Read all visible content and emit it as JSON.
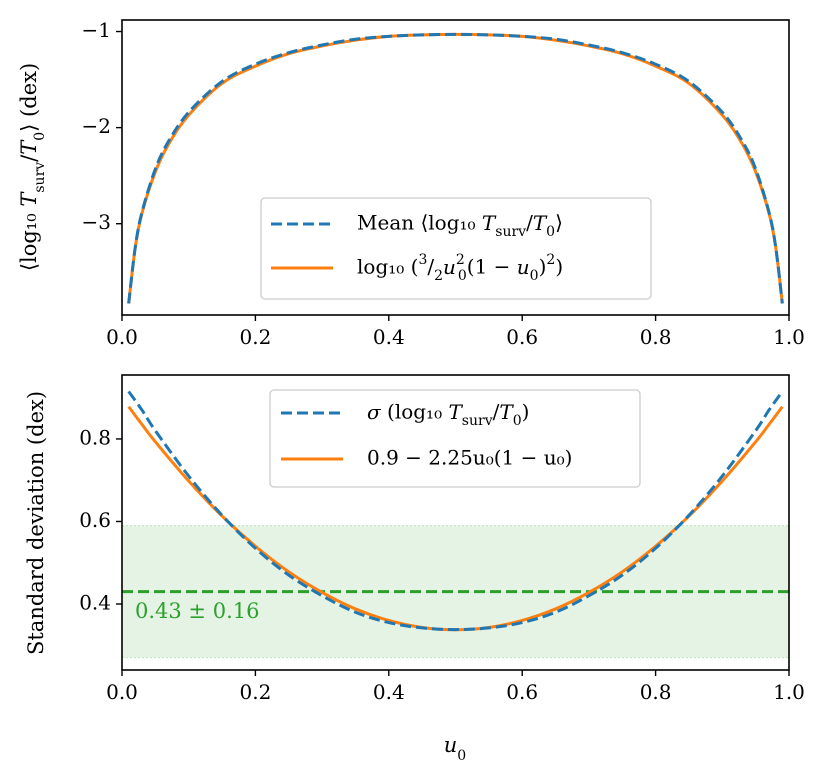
{
  "chart_data": [
    {
      "type": "line",
      "xlabel": "",
      "ylabel": "⟨log₁₀ T_surv/T₀⟩ (dex)",
      "xlim": [
        0.0,
        1.0
      ],
      "ylim": [
        -3.95,
        -0.88
      ],
      "grid": false,
      "legend_position": "lower-center",
      "x_ticks": [
        0.0,
        0.2,
        0.4,
        0.6,
        0.8,
        1.0
      ],
      "x_tick_labels": [
        "0.0",
        "0.2",
        "0.4",
        "0.6",
        "0.8",
        "1.0"
      ],
      "y_ticks": [
        -3,
        -2,
        -1
      ],
      "y_tick_labels": [
        "−3",
        "−2",
        "−1"
      ],
      "series": [
        {
          "name": "Mean ⟨log₁₀ T_surv/T₀⟩",
          "style": "dashed",
          "color": "#1f77b4",
          "x": [
            0.01,
            0.02,
            0.03,
            0.05,
            0.07,
            0.1,
            0.15,
            0.2,
            0.25,
            0.3,
            0.35,
            0.4,
            0.45,
            0.5,
            0.55,
            0.6,
            0.65,
            0.7,
            0.75,
            0.8,
            0.85,
            0.9,
            0.93,
            0.95,
            0.97,
            0.98,
            0.99
          ],
          "y": [
            -3.83,
            -3.24,
            -2.88,
            -2.43,
            -2.14,
            -1.84,
            -1.52,
            -1.34,
            -1.22,
            -1.14,
            -1.08,
            -1.05,
            -1.035,
            -1.03,
            -1.035,
            -1.05,
            -1.08,
            -1.14,
            -1.22,
            -1.34,
            -1.52,
            -1.84,
            -2.14,
            -2.43,
            -2.88,
            -3.24,
            -3.83
          ]
        },
        {
          "name": "log₁₀ (3/2 u₀²(1 − u₀)²)",
          "style": "solid",
          "color": "#ff7f0e",
          "x": [
            0.01,
            0.02,
            0.03,
            0.05,
            0.07,
            0.1,
            0.15,
            0.2,
            0.25,
            0.3,
            0.35,
            0.4,
            0.45,
            0.5,
            0.55,
            0.6,
            0.65,
            0.7,
            0.75,
            0.8,
            0.85,
            0.9,
            0.93,
            0.95,
            0.97,
            0.98,
            0.99
          ],
          "y": [
            -3.83,
            -3.24,
            -2.89,
            -2.46,
            -2.17,
            -1.87,
            -1.54,
            -1.36,
            -1.23,
            -1.15,
            -1.09,
            -1.05,
            -1.035,
            -1.03,
            -1.035,
            -1.05,
            -1.09,
            -1.15,
            -1.23,
            -1.36,
            -1.54,
            -1.87,
            -2.17,
            -2.46,
            -2.89,
            -3.24,
            -3.83
          ]
        }
      ]
    },
    {
      "type": "line",
      "xlabel": "u₀",
      "ylabel": "Standard deviation (dex)",
      "xlim": [
        0.0,
        1.0
      ],
      "ylim": [
        0.24,
        0.955
      ],
      "grid": false,
      "legend_position": "upper-center",
      "x_ticks": [
        0.0,
        0.2,
        0.4,
        0.6,
        0.8,
        1.0
      ],
      "x_tick_labels": [
        "0.0",
        "0.2",
        "0.4",
        "0.6",
        "0.8",
        "1.0"
      ],
      "y_ticks": [
        0.4,
        0.6,
        0.8
      ],
      "y_tick_labels": [
        "0.4",
        "0.6",
        "0.8"
      ],
      "band": {
        "center": 0.43,
        "low": 0.27,
        "high": 0.59,
        "color": "#2ca02c"
      },
      "annotation": "0.43 ± 0.16",
      "series": [
        {
          "name": "σ (log₁₀ T_surv/T₀)",
          "style": "dashed",
          "color": "#1f77b4",
          "x": [
            0.01,
            0.03,
            0.05,
            0.1,
            0.15,
            0.2,
            0.25,
            0.3,
            0.35,
            0.4,
            0.45,
            0.5,
            0.55,
            0.6,
            0.65,
            0.7,
            0.75,
            0.8,
            0.85,
            0.9,
            0.95,
            0.97,
            0.99
          ],
          "y": [
            0.915,
            0.87,
            0.82,
            0.71,
            0.615,
            0.535,
            0.47,
            0.42,
            0.38,
            0.355,
            0.342,
            0.338,
            0.342,
            0.355,
            0.38,
            0.42,
            0.47,
            0.535,
            0.615,
            0.71,
            0.82,
            0.87,
            0.915
          ]
        },
        {
          "name": "0.9 − 2.25u₀(1 − u₀)",
          "style": "solid",
          "color": "#ff7f0e",
          "x": [
            0.01,
            0.03,
            0.05,
            0.1,
            0.15,
            0.2,
            0.25,
            0.3,
            0.35,
            0.4,
            0.45,
            0.5,
            0.55,
            0.6,
            0.65,
            0.7,
            0.75,
            0.8,
            0.85,
            0.9,
            0.95,
            0.97,
            0.99
          ],
          "y": [
            0.878,
            0.835,
            0.793,
            0.698,
            0.613,
            0.54,
            0.478,
            0.428,
            0.388,
            0.36,
            0.343,
            0.3375,
            0.343,
            0.36,
            0.388,
            0.428,
            0.478,
            0.54,
            0.613,
            0.698,
            0.793,
            0.835,
            0.878
          ]
        }
      ]
    }
  ]
}
